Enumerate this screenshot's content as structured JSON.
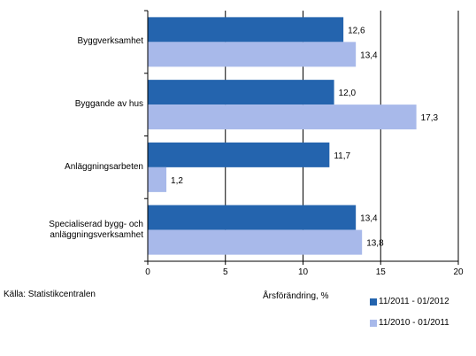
{
  "chart_data": {
    "type": "bar",
    "orientation": "horizontal",
    "categories": [
      "Byggverksamhet",
      "Byggande av hus",
      "Anläggningsarbeten",
      "Specialiserad bygg- och anläggningsverksamhet"
    ],
    "category_lines": [
      [
        "Byggverksamhet"
      ],
      [
        "Byggande av hus"
      ],
      [
        "Anläggningsarbeten"
      ],
      [
        "Specialiserad bygg- och",
        "anläggningsverksamhet"
      ]
    ],
    "series": [
      {
        "name": "11/2011 - 01/2012",
        "color": "#2464ae",
        "values": [
          12.6,
          12.0,
          11.7,
          13.4
        ],
        "labels": [
          "12,6",
          "12,0",
          "11,7",
          "13,4"
        ]
      },
      {
        "name": "11/2010 - 01/2011",
        "color": "#a8b9ea",
        "values": [
          13.4,
          17.3,
          1.2,
          13.8
        ],
        "labels": [
          "13,4",
          "17,3",
          "1,2",
          "13,8"
        ]
      }
    ],
    "xlim": [
      0,
      20
    ],
    "xticks": [
      0,
      5,
      10,
      15,
      20
    ],
    "xlabel": "Årsförändring, %",
    "grid": "vertical",
    "legend": "bottom-right"
  },
  "source": "Källa: Statistikcentralen"
}
